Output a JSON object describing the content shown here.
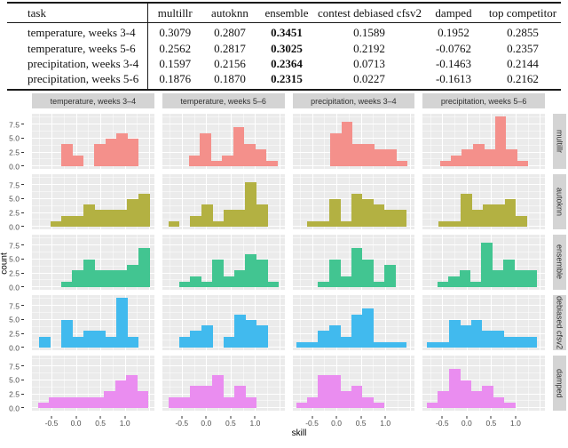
{
  "table": {
    "columns": [
      "task",
      "multillr",
      "autoknn",
      "ensemble",
      "contest debiased cfsv2",
      "damped",
      "top competitor"
    ],
    "bold_column": "ensemble",
    "bold_value_index": 2,
    "rows": [
      {
        "task": "temperature, weeks 3-4",
        "values": [
          "0.3079",
          "0.2807",
          "0.3451",
          "0.1589",
          "0.1952",
          "0.2855"
        ]
      },
      {
        "task": "temperature, weeks 5-6",
        "values": [
          "0.2562",
          "0.2817",
          "0.3025",
          "0.2192",
          "-0.0762",
          "0.2357"
        ]
      },
      {
        "task": "precipitation, weeks 3-4",
        "values": [
          "0.1597",
          "0.2156",
          "0.2364",
          "0.0713",
          "-0.1463",
          "0.2144"
        ]
      },
      {
        "task": "precipitation, weeks 5-6",
        "values": [
          "0.1876",
          "0.1870",
          "0.2315",
          "0.0227",
          "-0.1613",
          "0.2162"
        ]
      }
    ]
  },
  "chart_data": {
    "type": "bar",
    "subtype": "faceted-histogram-grid",
    "xlabel": "skill",
    "ylabel": "count",
    "x_range": [
      -0.9,
      1.6
    ],
    "y_range": [
      -0.45,
      9.45
    ],
    "x_tick_labels": [
      "-0.5",
      "0.0",
      "0.5",
      "1.0"
    ],
    "x_tick_values": [
      -0.5,
      0.0,
      0.5,
      1.0
    ],
    "y_tick_labels": [
      "0.0",
      "2.5",
      "5.0",
      "7.5"
    ],
    "y_tick_values": [
      0,
      2.5,
      5.0,
      7.5
    ],
    "grid_major_x": [
      -0.5,
      0.0,
      0.5,
      1.0,
      1.5
    ],
    "grid_minor_x": [
      -0.75,
      -0.25,
      0.25,
      0.75,
      1.25
    ],
    "grid_major_y": [
      0,
      2.5,
      5.0,
      7.5
    ],
    "grid_minor_y": [
      1.25,
      3.75,
      6.25,
      8.75
    ],
    "panel_bg": "#EBEBEB",
    "strip_bg": "#D4D4D4",
    "facet_columns": [
      "temperature, weeks 3–4",
      "temperature, weeks 5–6",
      "precipitation, weeks 3–4",
      "precipitation, weeks 5–6"
    ],
    "facet_rows": [
      {
        "label": "multillr",
        "color": "#F4908B"
      },
      {
        "label": "autoknn",
        "color": "#B3B142"
      },
      {
        "label": "ensemble",
        "color": "#42C591"
      },
      {
        "label": "debiased cfsv2",
        "color": "#41BAEE"
      },
      {
        "label": "damped",
        "color": "#EA8DF0"
      }
    ],
    "bin_width_frac": 0.09,
    "histograms": [
      [
        {
          "start": 0.24,
          "counts": [
            4,
            2,
            0,
            4,
            5,
            6,
            5
          ]
        },
        {
          "start": 0.22,
          "counts": [
            2,
            6,
            1,
            2,
            7,
            4,
            3,
            1
          ]
        },
        {
          "start": 0.31,
          "counts": [
            6,
            8,
            4,
            4,
            3,
            3,
            1
          ]
        },
        {
          "start": 0.14,
          "counts": [
            1,
            2,
            3,
            4,
            3,
            9,
            3,
            1
          ]
        }
      ],
      [
        {
          "start": 0.15,
          "counts": [
            1,
            2,
            2,
            4,
            3,
            3,
            3,
            5,
            6
          ]
        },
        {
          "start": 0.05,
          "counts": [
            1,
            0,
            2,
            4,
            1,
            3,
            3,
            8,
            4
          ]
        },
        {
          "start": 0.12,
          "counts": [
            1,
            1,
            5,
            1,
            6,
            5,
            4,
            3,
            3
          ]
        },
        {
          "start": 0.13,
          "counts": [
            1,
            1,
            6,
            3,
            4,
            4,
            5,
            2
          ]
        }
      ],
      [
        {
          "start": 0.24,
          "counts": [
            1,
            3,
            5,
            3,
            3,
            3,
            4,
            7
          ]
        },
        {
          "start": 0.14,
          "counts": [
            1,
            2,
            1,
            5,
            2,
            3,
            6,
            5,
            1
          ]
        },
        {
          "start": 0.21,
          "counts": [
            1,
            5,
            2,
            7,
            5,
            1,
            4
          ]
        },
        {
          "start": 0.12,
          "counts": [
            1,
            2,
            3,
            1,
            8,
            3,
            5,
            3,
            3
          ]
        }
      ],
      [
        {
          "start": 0.06,
          "counts": [
            2,
            0,
            5,
            2,
            3,
            3,
            2,
            9,
            2
          ]
        },
        {
          "start": 0.14,
          "counts": [
            2,
            3,
            4,
            0,
            2,
            6,
            5,
            4
          ]
        },
        {
          "start": 0.03,
          "counts": [
            1,
            1,
            3,
            4,
            2,
            6,
            7,
            1,
            1,
            1
          ]
        },
        {
          "start": 0.035,
          "counts": [
            1,
            1,
            5,
            4,
            5,
            3,
            3,
            2,
            2,
            2
          ]
        }
      ],
      [
        {
          "start": 0.05,
          "counts": [
            1,
            2,
            2,
            2,
            2,
            2,
            3,
            5,
            6,
            3
          ]
        },
        {
          "start": 0.05,
          "counts": [
            2,
            2,
            4,
            4,
            6,
            2,
            4,
            2
          ]
        },
        {
          "start": 0.03,
          "counts": [
            1,
            2,
            6,
            6,
            3,
            4,
            2,
            1
          ]
        },
        {
          "start": 0.035,
          "counts": [
            1,
            3,
            7,
            5,
            3,
            4,
            2,
            1
          ]
        }
      ]
    ]
  }
}
